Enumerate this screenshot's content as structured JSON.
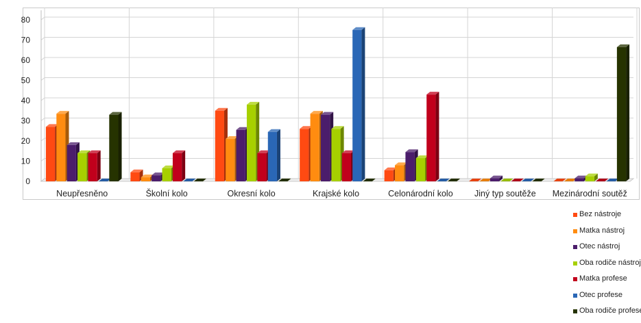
{
  "chart_data": {
    "type": "bar",
    "categories": [
      "Neupřesněno",
      "Školní kolo",
      "Okresní kolo",
      "Krajské kolo",
      "Celonárodní kolo",
      "Jiný typ soutěže",
      "Mezinárodní soutěž"
    ],
    "series": [
      {
        "name": "Bez nástroje",
        "color": "#ff4a12",
        "values": [
          27,
          4.5,
          35,
          26,
          5.5,
          0,
          0
        ]
      },
      {
        "name": "Matka nástroj",
        "color": "#ff8c10",
        "values": [
          33.5,
          2,
          21,
          33.5,
          8,
          0,
          0
        ]
      },
      {
        "name": "Otec nástroj",
        "color": "#4b1d6b",
        "values": [
          18,
          3,
          25.5,
          33,
          14.5,
          1.5,
          1.5
        ]
      },
      {
        "name": "Oba rodiče nástroj",
        "color": "#a7d000",
        "values": [
          14,
          6.5,
          38,
          26,
          11.5,
          0,
          2.5
        ]
      },
      {
        "name": "Matka profese",
        "color": "#c1001c",
        "values": [
          14,
          14,
          14,
          14,
          43,
          0,
          0
        ]
      },
      {
        "name": "Otec profese",
        "color": "#2a67b6",
        "values": [
          0,
          0,
          24.5,
          75,
          0,
          0,
          0
        ]
      },
      {
        "name": "Oba rodiče profese",
        "color": "#263300",
        "values": [
          33,
          0,
          0,
          0,
          0,
          0,
          66.5
        ]
      }
    ],
    "yticks": [
      "0",
      "10",
      "20",
      "30",
      "40",
      "50",
      "60",
      "70",
      "80"
    ],
    "ylim": [
      0,
      80
    ],
    "grid": true,
    "legend_position": "bottom-right"
  }
}
